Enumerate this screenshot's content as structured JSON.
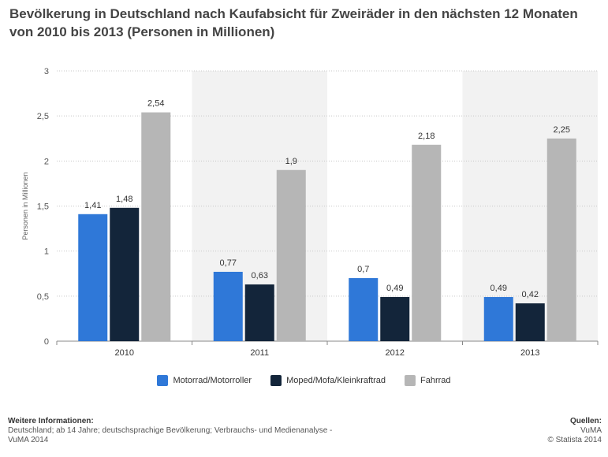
{
  "title": "Bevölkerung in Deutschland nach Kaufabsicht für Zweiräder in den nächsten 12 Monaten von 2010 bis 2013 (Personen in Millionen)",
  "footer": {
    "info_heading": "Weitere Informationen:",
    "info_text": "Deutschland; ab 14 Jahre; deutschsprachige Bevölkerung; Verbrauchs- und Medienanalyse - VuMA 2014",
    "sources_heading": "Quellen:",
    "sources_text": "VuMA",
    "copyright": "© Statista 2014"
  },
  "chart_data": {
    "type": "bar",
    "categories": [
      "2010",
      "2011",
      "2012",
      "2013"
    ],
    "series": [
      {
        "name": "Motorrad/Motorroller",
        "color": "#2f78d8",
        "values": [
          1.41,
          0.77,
          0.7,
          0.49
        ],
        "labels": [
          "1,41",
          "0,77",
          "0,7",
          "0,49"
        ]
      },
      {
        "name": "Moped/Mofa/Kleinkraftrad",
        "color": "#13253a",
        "values": [
          1.48,
          0.63,
          0.49,
          0.42
        ],
        "labels": [
          "1,48",
          "0,63",
          "0,49",
          "0,42"
        ]
      },
      {
        "name": "Fahrrad",
        "color": "#b6b6b6",
        "values": [
          2.54,
          1.9,
          2.18,
          2.25
        ],
        "labels": [
          "2,54",
          "1,9",
          "2,18",
          "2,25"
        ]
      }
    ],
    "ylabel": "Personen in Millionen",
    "ylim": [
      0,
      3
    ],
    "yticks": [
      0,
      0.5,
      1,
      1.5,
      2,
      2.5,
      3
    ],
    "ytick_labels": [
      "0",
      "0,5",
      "1",
      "1,5",
      "2",
      "2,5",
      "3"
    ],
    "grid": true,
    "legend_position": "bottom"
  }
}
